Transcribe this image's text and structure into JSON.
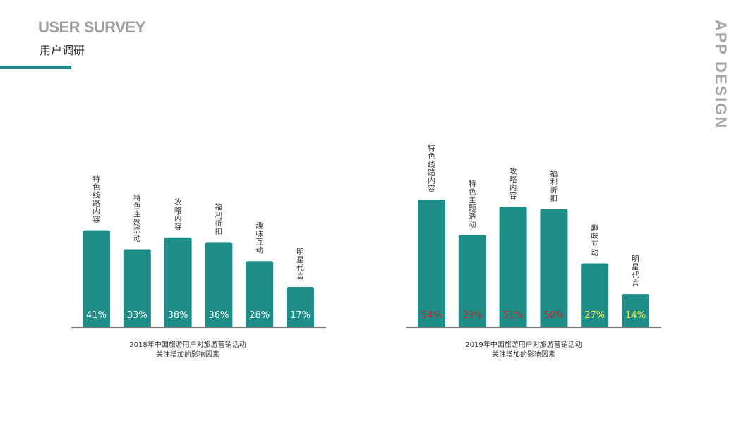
{
  "header": {
    "title_en": "USER SURVEY",
    "title_zh": "用户调研"
  },
  "side_label": "APP DESIGN",
  "colors": {
    "bar": "#1e8c87",
    "accent": "#1e8c87",
    "axis": "#7a7a7a",
    "value_white": "#ffffff",
    "value_red": "#c0282d",
    "value_yellow": "#f2ee3a"
  },
  "chart_data": [
    {
      "type": "bar",
      "categories": [
        "特色线路内容",
        "特色主题活动",
        "攻略内容",
        "福利折扣",
        "趣味互动",
        "明星代言"
      ],
      "values": [
        41,
        33,
        38,
        36,
        28,
        17
      ],
      "value_labels": [
        "41%",
        "33%",
        "38%",
        "36%",
        "28%",
        "17%"
      ],
      "value_colors": [
        "white",
        "white",
        "white",
        "white",
        "white",
        "white"
      ],
      "caption_line1": "2018年中国旅游用户对旅游营销活动",
      "caption_line2": "关注增加的影响因素"
    },
    {
      "type": "bar",
      "categories": [
        "特色线路内容",
        "特色主题活动",
        "攻略内容",
        "福利折扣",
        "趣味互动",
        "明星代言"
      ],
      "values": [
        54,
        39,
        51,
        50,
        27,
        14
      ],
      "value_labels": [
        "54%",
        "39%",
        "51%",
        "50%",
        "27%",
        "14%"
      ],
      "value_colors": [
        "red",
        "red",
        "red",
        "red",
        "yellow",
        "yellow"
      ],
      "caption_line1": "2019年中国旅游用户对旅游营销活动",
      "caption_line2": "关注增加的影响因素"
    }
  ]
}
